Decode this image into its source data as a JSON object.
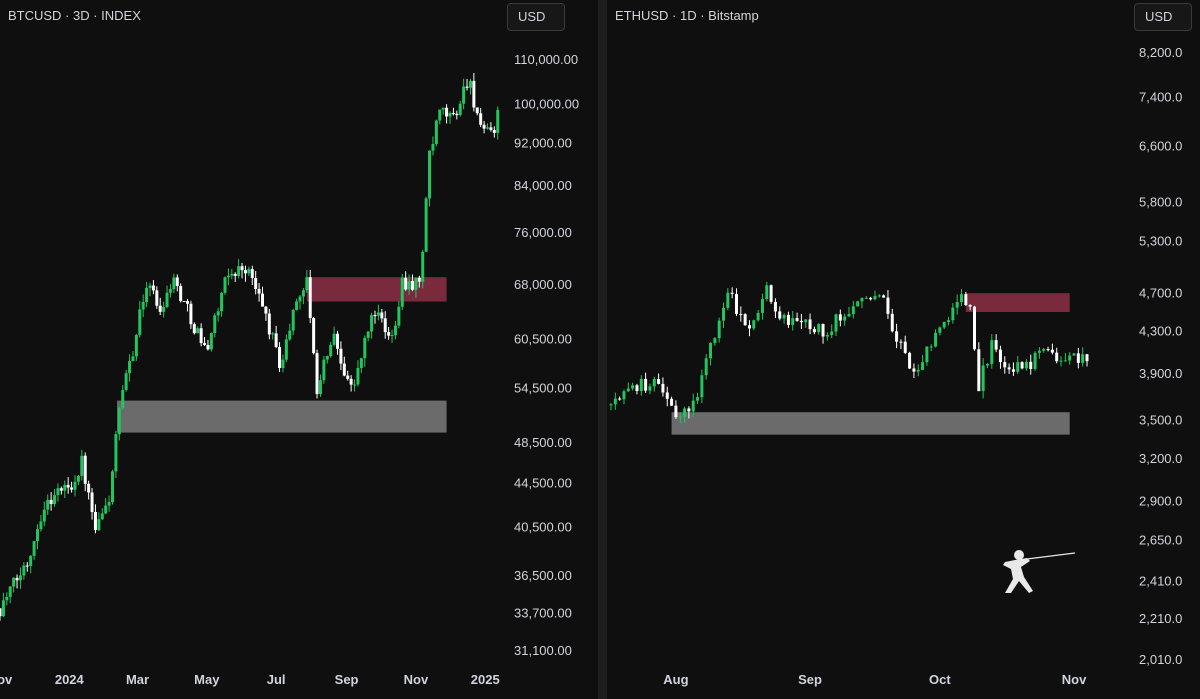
{
  "colors": {
    "background": "#0f0f0f",
    "up_candle": "#22c55e",
    "down_candle": "#ffffff",
    "supply_zone": "#7a2a3d",
    "demand_zone": "#6b6b6b"
  },
  "left_pane": {
    "title": "BTCUSD · 3D · INDEX",
    "currency": "USD"
  },
  "right_pane": {
    "title": "ETHUSD · 1D · Bitstamp",
    "currency": "USD"
  },
  "logo_icon": "fencer-logo-icon",
  "chart_data": [
    {
      "type": "candlestick",
      "symbol": "BTCUSD",
      "interval": "3D",
      "source": "INDEX",
      "currency": "USD",
      "y_scale": "log",
      "y_ticks": [
        110000,
        100000,
        92000,
        84000,
        76000,
        68000,
        60500,
        54500,
        48500,
        44500,
        40500,
        36500,
        33700,
        31100
      ],
      "y_tick_labels": [
        "110,000.00",
        "100,000.00",
        "92,000.00",
        "84,000.00",
        "76,000.00",
        "68,000.00",
        "60,500.00",
        "54,500.00",
        "48,500.00",
        "44,500.00",
        "40,500.00",
        "36,500.00",
        "33,700.00",
        "31,100.00"
      ],
      "x_ticks": [
        "2023-11-01",
        "2024-01-01",
        "2024-03-01",
        "2024-05-01",
        "2024-07-01",
        "2024-09-01",
        "2024-11-01",
        "2025-01-01"
      ],
      "x_tick_labels": [
        "Nov",
        "2024",
        "Mar",
        "May",
        "Jul",
        "Sep",
        "Nov",
        "2025"
      ],
      "x_range": [
        "2023-11-01",
        "2025-01-14"
      ],
      "zones": [
        {
          "kind": "supply",
          "start": "2024-07-28",
          "end": "2024-11-28",
          "low": 65500,
          "high": 69000
        },
        {
          "kind": "demand",
          "start": "2024-02-12",
          "end": "2024-11-28",
          "low": 49500,
          "high": 53000
        }
      ],
      "price_path": [
        [
          "2023-11-01",
          34000
        ],
        [
          "2023-11-25",
          37500
        ],
        [
          "2023-12-08",
          42000
        ],
        [
          "2023-12-20",
          43500
        ],
        [
          "2024-01-05",
          44500
        ],
        [
          "2024-01-12",
          46500
        ],
        [
          "2024-01-20",
          42000
        ],
        [
          "2024-01-24",
          40000
        ],
        [
          "2024-02-05",
          43000
        ],
        [
          "2024-02-14",
          51800
        ],
        [
          "2024-03-01",
          62000
        ],
        [
          "2024-03-10",
          69000
        ],
        [
          "2024-03-20",
          64000
        ],
        [
          "2024-04-01",
          69000
        ],
        [
          "2024-04-15",
          64000
        ],
        [
          "2024-04-30",
          59000
        ],
        [
          "2024-05-20",
          69500
        ],
        [
          "2024-06-05",
          70500
        ],
        [
          "2024-06-20",
          64500
        ],
        [
          "2024-07-05",
          57000
        ],
        [
          "2024-07-20",
          66500
        ],
        [
          "2024-07-29",
          68500
        ],
        [
          "2024-08-05",
          54000
        ],
        [
          "2024-08-20",
          61000
        ],
        [
          "2024-09-06",
          54000
        ],
        [
          "2024-09-25",
          64500
        ],
        [
          "2024-10-10",
          60000
        ],
        [
          "2024-10-20",
          68500
        ],
        [
          "2024-11-05",
          68000
        ],
        [
          "2024-11-12",
          88000
        ],
        [
          "2024-11-22",
          98000
        ],
        [
          "2024-12-05",
          97000
        ],
        [
          "2024-12-17",
          106000
        ],
        [
          "2024-12-30",
          93000
        ],
        [
          "2025-01-10",
          95000
        ],
        [
          "2025-01-14",
          104000
        ]
      ]
    },
    {
      "type": "candlestick",
      "symbol": "ETHUSD",
      "interval": "1D",
      "source": "Bitstamp",
      "currency": "USD",
      "y_scale": "log",
      "y_ticks": [
        8200,
        7400,
        6600,
        5800,
        5300,
        4700,
        4300,
        3900,
        3500,
        3200,
        2900,
        2650,
        2410,
        2210,
        2010
      ],
      "y_tick_labels": [
        "8,200.0",
        "7,400.0",
        "6,600.0",
        "5,800.0",
        "5,300.0",
        "4,700.0",
        "4,300.0",
        "3,900.0",
        "3,500.0",
        "3,200.0",
        "2,900.0",
        "2,650.0",
        "2,410.0",
        "2,210.0",
        "2,010.0"
      ],
      "x_ticks": [
        "2025-08-01",
        "2025-09-01",
        "2025-10-01",
        "2025-11-01"
      ],
      "x_tick_labels": [
        "Aug",
        "Sep",
        "Oct",
        "Nov"
      ],
      "x_range": [
        "2025-07-17",
        "2025-11-04"
      ],
      "zones": [
        {
          "kind": "supply",
          "start": "2025-10-07",
          "end": "2025-10-31",
          "low": 4490,
          "high": 4690
        },
        {
          "kind": "demand",
          "start": "2025-07-31",
          "end": "2025-10-31",
          "low": 3380,
          "high": 3560
        }
      ],
      "price_path": [
        [
          "2025-07-17",
          3620
        ],
        [
          "2025-07-22",
          3760
        ],
        [
          "2025-07-28",
          3820
        ],
        [
          "2025-08-01",
          3500
        ],
        [
          "2025-08-05",
          3620
        ],
        [
          "2025-08-08",
          4000
        ],
        [
          "2025-08-13",
          4700
        ],
        [
          "2025-08-18",
          4300
        ],
        [
          "2025-08-22",
          4800
        ],
        [
          "2025-08-25",
          4400
        ],
        [
          "2025-08-30",
          4400
        ],
        [
          "2025-09-05",
          4300
        ],
        [
          "2025-09-13",
          4700
        ],
        [
          "2025-09-18",
          4600
        ],
        [
          "2025-09-22",
          4150
        ],
        [
          "2025-09-25",
          3900
        ],
        [
          "2025-10-01",
          4300
        ],
        [
          "2025-10-06",
          4700
        ],
        [
          "2025-10-08",
          4500
        ],
        [
          "2025-10-10",
          3800
        ],
        [
          "2025-10-13",
          4150
        ],
        [
          "2025-10-16",
          3950
        ],
        [
          "2025-10-20",
          3950
        ],
        [
          "2025-10-24",
          4050
        ]
      ]
    }
  ]
}
